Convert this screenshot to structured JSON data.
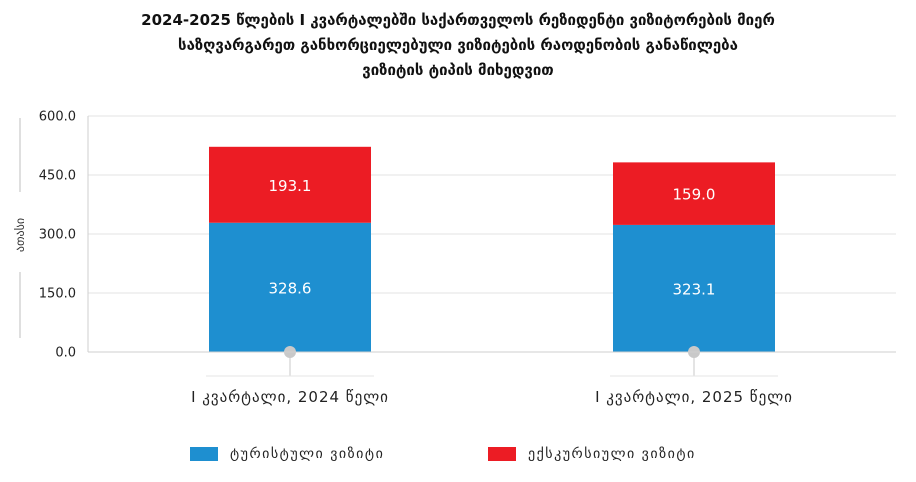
{
  "chart_data": {
    "type": "bar",
    "stacked": true,
    "title_lines": [
      "2024-2025 წლების I კვარტალებში საქართველოს რეზიდენტი ვიზიტორების მიერ",
      "საზღვარგარეთ განხორციელებული ვიზიტების რაოდენობის განაწილება",
      "ვიზიტის ტიპის მიხედვით"
    ],
    "ylabel": "ათასი",
    "xlabel": "",
    "ylim": [
      0,
      600
    ],
    "yticks": [
      "0.0",
      "150.0",
      "300.0",
      "450.0",
      "600.0"
    ],
    "categories": [
      "I კვარტალი, 2024 წელი",
      "I კვარტალი, 2025 წელი"
    ],
    "series": [
      {
        "name": "ტურისტული ვიზიტი",
        "values": [
          328.6,
          323.1
        ],
        "labels": [
          "328.6",
          "323.1"
        ],
        "color": "#1e8fd0"
      },
      {
        "name": "ექსკურსიული ვიზიტი",
        "values": [
          193.1,
          159.0
        ],
        "labels": [
          "193.1",
          "159.0"
        ],
        "color": "#ec1c24"
      }
    ],
    "grid": true,
    "legend_position": "bottom"
  }
}
